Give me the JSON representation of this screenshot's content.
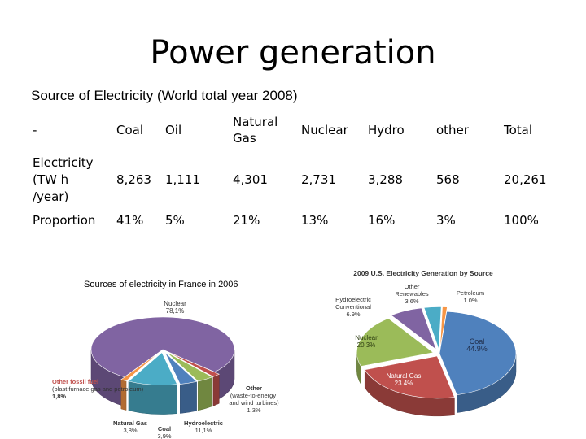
{
  "slide": {
    "title": "Power generation",
    "subtitle": "Source of Electricity (World total year 2008)"
  },
  "table": {
    "headers": [
      "-",
      "Coal",
      "Oil",
      "Natural Gas",
      "Nuclear",
      "Hydro",
      "other",
      "Total"
    ],
    "rows": [
      {
        "label": "Electricity (TW h /year)",
        "cells": [
          "8,263",
          "1,111",
          "4,301",
          "2,731",
          "3,288",
          "568",
          "20,261"
        ]
      },
      {
        "label": "Proportion",
        "cells": [
          "41%",
          "5%",
          "21%",
          "13%",
          "16%",
          "3%",
          "100%"
        ]
      }
    ]
  },
  "chart_data": [
    {
      "type": "pie",
      "title": "Sources of electricity in France in 2006",
      "slices": [
        {
          "name": "Nuclear",
          "label": "Nuclear",
          "value_label": "78,1%",
          "value": 78.1,
          "color": "#8064a2"
        },
        {
          "name": "Other fossil fuel (blast furnace gas and petroleum)",
          "label": "Other fossil fuel",
          "sublabel": "(blast furnace gas and petroleum)",
          "value_label": "1,8%",
          "value": 1.8,
          "color": "#c0504d"
        },
        {
          "name": "Natural Gas",
          "label": "Natural Gas",
          "value_label": "3,8%",
          "value": 3.8,
          "color": "#9bbb59"
        },
        {
          "name": "Coal",
          "label": "Coal",
          "value_label": "3,9%",
          "value": 3.9,
          "color": "#4f81bd"
        },
        {
          "name": "Hydroelectric",
          "label": "Hydroelectric",
          "value_label": "11,1%",
          "value": 11.1,
          "color": "#4bacc6"
        },
        {
          "name": "Other (waste-to-energy and wind turbines)",
          "label": "Other",
          "sublabel": "(waste-to-energy and wind turbines)",
          "value_label": "1,3%",
          "value": 1.3,
          "color": "#f79646"
        }
      ]
    },
    {
      "type": "pie",
      "title": "2009 U.S. Electricity Generation by Source",
      "slices": [
        {
          "name": "Coal",
          "label": "Coal",
          "value_label": "44.9%",
          "value": 44.9,
          "color": "#4f81bd"
        },
        {
          "name": "Natural Gas",
          "label": "Natural Gas",
          "value_label": "23.4%",
          "value": 23.4,
          "color": "#c0504d"
        },
        {
          "name": "Nuclear",
          "label": "Nuclear",
          "value_label": "20.3%",
          "value": 20.3,
          "color": "#9bbb59"
        },
        {
          "name": "Hydroelectric Conventional",
          "label": "Hydroelectric Conventional",
          "value_label": "6.9%",
          "value": 6.9,
          "color": "#8064a2"
        },
        {
          "name": "Other Renewables",
          "label": "Other Renewables",
          "value_label": "3.6%",
          "value": 3.6,
          "color": "#4bacc6"
        },
        {
          "name": "Petroleum",
          "label": "Petroleum",
          "value_label": "1.0%",
          "value": 1.0,
          "color": "#f79646"
        }
      ]
    }
  ]
}
